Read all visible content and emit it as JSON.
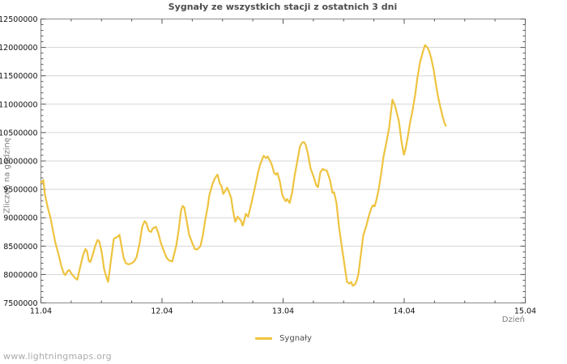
{
  "title": "Sygnały ze wszystkich stacji z ostatnich 3 dni",
  "watermark": "www.lightningmaps.org",
  "colors": {
    "line": "#eec33f",
    "grid": "#d6d6d6",
    "frame": "#8a8a8a",
    "tick": "#555555",
    "tick_label": "#111111",
    "axis_label": "#7d7d7d",
    "title": "#4d4d4d",
    "background": "#ffffff"
  },
  "chart_data": {
    "type": "line",
    "title": "Sygnały ze wszystkich stacji z ostatnich 3 dni",
    "xlabel": "Dzień",
    "ylabel": "Zliczeń na godzinę",
    "xlim": [
      11,
      15
    ],
    "ylim": [
      7500000,
      12500000
    ],
    "grid": "horizontal-only",
    "x_ticks": [
      {
        "value": 11,
        "label": "11.04"
      },
      {
        "value": 12,
        "label": "12.04"
      },
      {
        "value": 13,
        "label": "13.04"
      },
      {
        "value": 14,
        "label": "14.04"
      },
      {
        "value": 15,
        "label": "15.04"
      }
    ],
    "y_tick_step": 500000,
    "y_minor_per_major": 4,
    "x_minor_per_major": 3,
    "legend": {
      "position": "bottom-center",
      "entries": [
        {
          "label": "Sygnały",
          "color": "#eec33f"
        }
      ]
    },
    "series": [
      {
        "name": "Sygnały",
        "color": "#eec33f",
        "points": [
          [
            11.0,
            9620000
          ],
          [
            11.02,
            9660000
          ],
          [
            11.033,
            9420000
          ],
          [
            11.054,
            9200000
          ],
          [
            11.08,
            8990000
          ],
          [
            11.1,
            8770000
          ],
          [
            11.12,
            8560000
          ],
          [
            11.147,
            8340000
          ],
          [
            11.167,
            8160000
          ],
          [
            11.187,
            8030000
          ],
          [
            11.201,
            7990000
          ],
          [
            11.221,
            8060000
          ],
          [
            11.234,
            8080000
          ],
          [
            11.254,
            8010000
          ],
          [
            11.281,
            7940000
          ],
          [
            11.301,
            7910000
          ],
          [
            11.321,
            8100000
          ],
          [
            11.348,
            8340000
          ],
          [
            11.368,
            8450000
          ],
          [
            11.381,
            8410000
          ],
          [
            11.395,
            8240000
          ],
          [
            11.408,
            8220000
          ],
          [
            11.428,
            8350000
          ],
          [
            11.448,
            8500000
          ],
          [
            11.468,
            8610000
          ],
          [
            11.482,
            8580000
          ],
          [
            11.502,
            8400000
          ],
          [
            11.522,
            8100000
          ],
          [
            11.542,
            7950000
          ],
          [
            11.555,
            7870000
          ],
          [
            11.575,
            8200000
          ],
          [
            11.602,
            8630000
          ],
          [
            11.635,
            8670000
          ],
          [
            11.649,
            8700000
          ],
          [
            11.669,
            8460000
          ],
          [
            11.682,
            8300000
          ],
          [
            11.702,
            8200000
          ],
          [
            11.722,
            8180000
          ],
          [
            11.742,
            8190000
          ],
          [
            11.769,
            8230000
          ],
          [
            11.789,
            8300000
          ],
          [
            11.816,
            8560000
          ],
          [
            11.836,
            8840000
          ],
          [
            11.856,
            8940000
          ],
          [
            11.87,
            8910000
          ],
          [
            11.89,
            8770000
          ],
          [
            11.91,
            8750000
          ],
          [
            11.923,
            8810000
          ],
          [
            11.95,
            8840000
          ],
          [
            11.97,
            8730000
          ],
          [
            11.99,
            8560000
          ],
          [
            12.017,
            8410000
          ],
          [
            12.037,
            8300000
          ],
          [
            12.057,
            8250000
          ],
          [
            12.084,
            8230000
          ],
          [
            12.117,
            8500000
          ],
          [
            12.137,
            8770000
          ],
          [
            12.157,
            9130000
          ],
          [
            12.171,
            9210000
          ],
          [
            12.184,
            9180000
          ],
          [
            12.204,
            8940000
          ],
          [
            12.224,
            8700000
          ],
          [
            12.251,
            8550000
          ],
          [
            12.271,
            8450000
          ],
          [
            12.291,
            8440000
          ],
          [
            12.318,
            8500000
          ],
          [
            12.338,
            8700000
          ],
          [
            12.358,
            8970000
          ],
          [
            12.378,
            9200000
          ],
          [
            12.391,
            9400000
          ],
          [
            12.418,
            9600000
          ],
          [
            12.438,
            9700000
          ],
          [
            12.458,
            9760000
          ],
          [
            12.478,
            9600000
          ],
          [
            12.492,
            9550000
          ],
          [
            12.505,
            9420000
          ],
          [
            12.525,
            9480000
          ],
          [
            12.538,
            9530000
          ],
          [
            12.559,
            9420000
          ],
          [
            12.572,
            9340000
          ],
          [
            12.585,
            9140000
          ],
          [
            12.605,
            8930000
          ],
          [
            12.625,
            9020000
          ],
          [
            12.639,
            8980000
          ],
          [
            12.652,
            8950000
          ],
          [
            12.666,
            8860000
          ],
          [
            12.679,
            8950000
          ],
          [
            12.692,
            9070000
          ],
          [
            12.712,
            9020000
          ],
          [
            12.739,
            9260000
          ],
          [
            12.773,
            9590000
          ],
          [
            12.793,
            9800000
          ],
          [
            12.813,
            9950000
          ],
          [
            12.839,
            10090000
          ],
          [
            12.86,
            10050000
          ],
          [
            12.873,
            10080000
          ],
          [
            12.893,
            10000000
          ],
          [
            12.906,
            9940000
          ],
          [
            12.926,
            9790000
          ],
          [
            12.94,
            9760000
          ],
          [
            12.953,
            9790000
          ],
          [
            12.973,
            9640000
          ],
          [
            12.993,
            9400000
          ],
          [
            13.02,
            9290000
          ],
          [
            13.033,
            9330000
          ],
          [
            13.054,
            9260000
          ],
          [
            13.074,
            9440000
          ],
          [
            13.094,
            9730000
          ],
          [
            13.121,
            10040000
          ],
          [
            13.14,
            10260000
          ],
          [
            13.161,
            10330000
          ],
          [
            13.174,
            10330000
          ],
          [
            13.187,
            10280000
          ],
          [
            13.207,
            10110000
          ],
          [
            13.227,
            9870000
          ],
          [
            13.254,
            9710000
          ],
          [
            13.274,
            9570000
          ],
          [
            13.288,
            9540000
          ],
          [
            13.308,
            9800000
          ],
          [
            13.328,
            9860000
          ],
          [
            13.341,
            9840000
          ],
          [
            13.361,
            9830000
          ],
          [
            13.388,
            9660000
          ],
          [
            13.408,
            9440000
          ],
          [
            13.421,
            9450000
          ],
          [
            13.441,
            9260000
          ],
          [
            13.462,
            8830000
          ],
          [
            13.488,
            8440000
          ],
          [
            13.508,
            8160000
          ],
          [
            13.528,
            7870000
          ],
          [
            13.548,
            7840000
          ],
          [
            13.562,
            7870000
          ],
          [
            13.575,
            7800000
          ],
          [
            13.595,
            7830000
          ],
          [
            13.609,
            7900000
          ],
          [
            13.622,
            8010000
          ],
          [
            13.642,
            8350000
          ],
          [
            13.662,
            8690000
          ],
          [
            13.689,
            8870000
          ],
          [
            13.709,
            9040000
          ],
          [
            13.729,
            9170000
          ],
          [
            13.742,
            9220000
          ],
          [
            13.756,
            9200000
          ],
          [
            13.769,
            9300000
          ],
          [
            13.789,
            9500000
          ],
          [
            13.809,
            9760000
          ],
          [
            13.829,
            10070000
          ],
          [
            13.856,
            10360000
          ],
          [
            13.876,
            10590000
          ],
          [
            13.89,
            10850000
          ],
          [
            13.903,
            11080000
          ],
          [
            13.916,
            11020000
          ],
          [
            13.93,
            10930000
          ],
          [
            13.957,
            10690000
          ],
          [
            13.977,
            10350000
          ],
          [
            13.997,
            10110000
          ],
          [
            14.01,
            10200000
          ],
          [
            14.03,
            10430000
          ],
          [
            14.05,
            10700000
          ],
          [
            14.064,
            10830000
          ],
          [
            14.09,
            11160000
          ],
          [
            14.11,
            11470000
          ],
          [
            14.13,
            11730000
          ],
          [
            14.157,
            11940000
          ],
          [
            14.171,
            12040000
          ],
          [
            14.191,
            12000000
          ],
          [
            14.204,
            11950000
          ],
          [
            14.224,
            11800000
          ],
          [
            14.244,
            11600000
          ],
          [
            14.258,
            11400000
          ],
          [
            14.278,
            11150000
          ],
          [
            14.298,
            10950000
          ],
          [
            14.318,
            10780000
          ],
          [
            14.331,
            10680000
          ],
          [
            14.344,
            10620000
          ]
        ]
      }
    ]
  }
}
